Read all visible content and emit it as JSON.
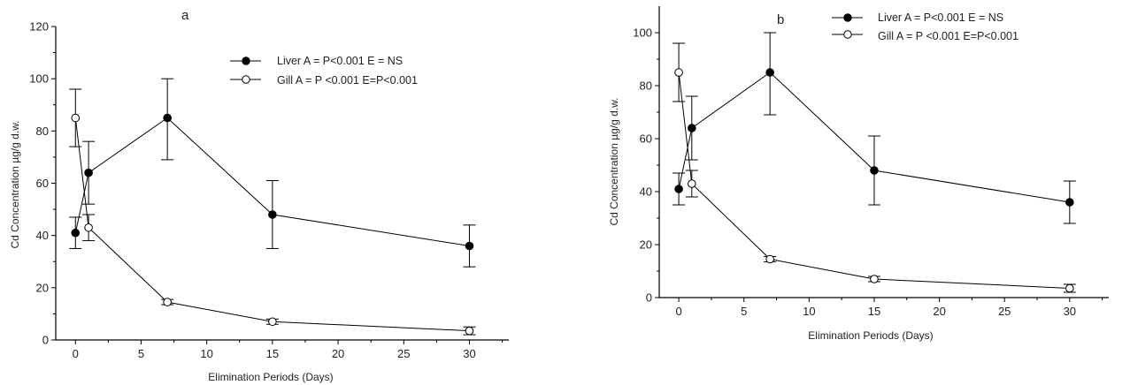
{
  "chart_data": [
    {
      "type": "line",
      "panel_label": "a",
      "xlabel": "Elimination Periods (Days)",
      "ylabel": "Cd Concentration µg/g d.w.",
      "xlim": [
        -1.5,
        33
      ],
      "ylim": [
        0,
        120
      ],
      "xticks": [
        0,
        5,
        10,
        15,
        20,
        25,
        30
      ],
      "yticks": [
        0,
        20,
        40,
        60,
        80,
        100,
        120
      ],
      "legend_position": "top-right",
      "series": [
        {
          "name": "Liver A = P<0.001 E = NS",
          "marker": "filled-circle",
          "x": [
            0,
            1,
            7,
            15,
            30
          ],
          "y": [
            41,
            64,
            85,
            48,
            36
          ],
          "err_low": [
            35,
            52,
            69,
            35,
            28
          ],
          "err_high": [
            47,
            76,
            100,
            61,
            44
          ]
        },
        {
          "name": "Gill A = P <0.001 E=P<0.001",
          "marker": "open-circle",
          "x": [
            0,
            1,
            7,
            15,
            30
          ],
          "y": [
            85,
            43,
            14.5,
            7,
            3.5
          ],
          "err_low": [
            74,
            38,
            13.5,
            6,
            2
          ],
          "err_high": [
            96,
            48,
            15.5,
            8,
            5
          ]
        }
      ]
    },
    {
      "type": "line",
      "panel_label": "b",
      "xlabel": "Elimination Periods (Days)",
      "ylabel": "Cd Concentration µg/g d.w.",
      "xlim": [
        -1.5,
        33
      ],
      "ylim": [
        0,
        110
      ],
      "xticks": [
        0,
        5,
        10,
        15,
        20,
        25,
        30
      ],
      "yticks": [
        0,
        20,
        40,
        60,
        80,
        100
      ],
      "legend_position": "top-right",
      "series": [
        {
          "name": "Liver A = P<0.001 E = NS",
          "marker": "filled-circle",
          "x": [
            0,
            1,
            7,
            15,
            30
          ],
          "y": [
            41,
            64,
            85,
            48,
            36
          ],
          "err_low": [
            35,
            52,
            69,
            35,
            28
          ],
          "err_high": [
            47,
            76,
            100,
            61,
            44
          ]
        },
        {
          "name": "Gill A = P <0.001 E=P<0.001",
          "marker": "open-circle",
          "x": [
            0,
            1,
            7,
            15,
            30
          ],
          "y": [
            85,
            43,
            14.5,
            7,
            3.5
          ],
          "err_low": [
            74,
            38,
            13.5,
            6,
            2
          ],
          "err_high": [
            96,
            48,
            15.5,
            8,
            5
          ]
        }
      ]
    }
  ]
}
